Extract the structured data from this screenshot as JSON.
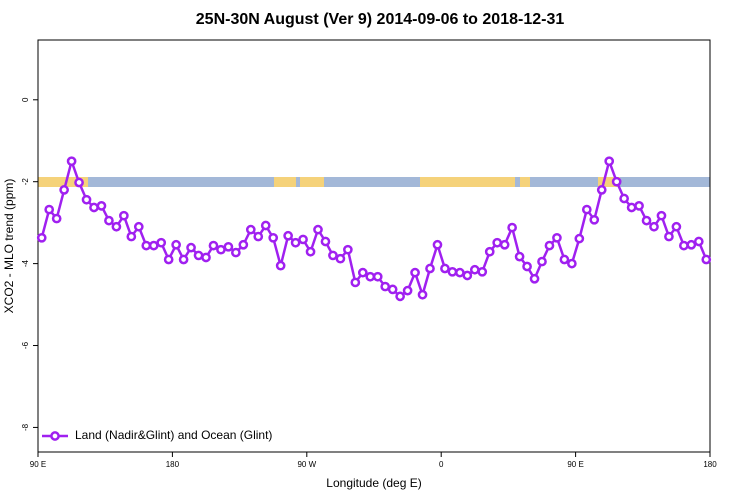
{
  "chart_data": {
    "type": "line",
    "title": "25N-30N August (Ver 9)   2014-09-06 to 2018-12-31",
    "x_label": "Longitude (deg E)",
    "y_label": "XCO2 - MLO trend (ppm)",
    "xlim": [
      90,
      540
    ],
    "xticks": [
      {
        "value": 90,
        "label": "90 E"
      },
      180,
      {
        "value": 270,
        "label": "90 W"
      },
      {
        "value": 360,
        "label": "0"
      },
      {
        "value": 450,
        "label": "90 E"
      },
      {
        "value": 540,
        "label": "180"
      }
    ],
    "ylim": [
      -8.6,
      1.46
    ],
    "yticks": [
      0,
      -2,
      -4,
      -6,
      -8
    ],
    "legend": "bottom-left",
    "x": [
      92.5,
      97.5,
      102.5,
      107.5,
      112.5,
      117.5,
      122.5,
      127.5,
      132.5,
      137.5,
      142.5,
      147.5,
      152.5,
      157.5,
      162.5,
      167.5,
      172.5,
      177.5,
      182.5,
      187.5,
      192.5,
      197.5,
      202.5,
      207.5,
      212.5,
      217.5,
      222.5,
      227.5,
      232.5,
      237.5,
      242.5,
      247.5,
      252.5,
      257.5,
      262.5,
      267.5,
      272.5,
      277.5,
      282.5,
      287.5,
      292.5,
      297.5,
      302.5,
      307.5,
      312.5,
      317.5,
      322.5,
      327.5,
      332.5,
      337.5,
      342.5,
      347.5,
      352.5,
      357.5,
      362.5,
      367.5,
      372.5,
      377.5,
      382.5,
      387.5,
      392.5,
      397.5,
      402.5,
      407.5,
      412.5,
      417.5,
      422.5,
      427.5,
      432.5,
      437.5,
      442.5,
      447.5,
      452.5,
      457.5,
      462.5,
      467.5,
      472.5,
      477.5,
      482.5,
      487.5,
      492.5,
      497.5,
      502.5,
      507.5,
      512.5,
      517.5,
      522.5,
      527.5,
      532.5,
      537.5
    ],
    "series": [
      {
        "name": "Land (Nadir&Glint) and Ocean (Glint)",
        "color": "#a020f0",
        "values": [
          -3.37,
          -2.68,
          -2.9,
          -2.2,
          -1.5,
          -2.02,
          -2.44,
          -2.63,
          -2.59,
          -2.95,
          -3.1,
          -2.83,
          -3.34,
          -3.1,
          -3.56,
          -3.56,
          -3.49,
          -3.9,
          -3.54,
          -3.9,
          -3.61,
          -3.8,
          -3.85,
          -3.56,
          -3.66,
          -3.59,
          -3.73,
          -3.54,
          -3.17,
          -3.34,
          -3.07,
          -3.37,
          -4.05,
          -3.32,
          -3.49,
          -3.41,
          -3.71,
          -3.17,
          -3.46,
          -3.8,
          -3.88,
          -3.66,
          -4.46,
          -4.22,
          -4.32,
          -4.32,
          -4.56,
          -4.63,
          -4.8,
          -4.66,
          -4.22,
          -4.76,
          -4.12,
          -3.54,
          -4.12,
          -4.2,
          -4.22,
          -4.29,
          -4.15,
          -4.2,
          -3.71,
          -3.49,
          -3.54,
          -3.12,
          -3.83,
          -4.07,
          -4.37,
          -3.95,
          -3.56,
          -3.37,
          -3.9,
          -4.0,
          -3.39,
          -2.68,
          -2.93,
          -2.2,
          -1.5,
          -2.0,
          -2.41,
          -2.63,
          -2.59,
          -2.95,
          -3.1,
          -2.83,
          -3.34,
          -3.1,
          -3.56,
          -3.54,
          -3.46,
          -3.9
        ]
      }
    ]
  }
}
